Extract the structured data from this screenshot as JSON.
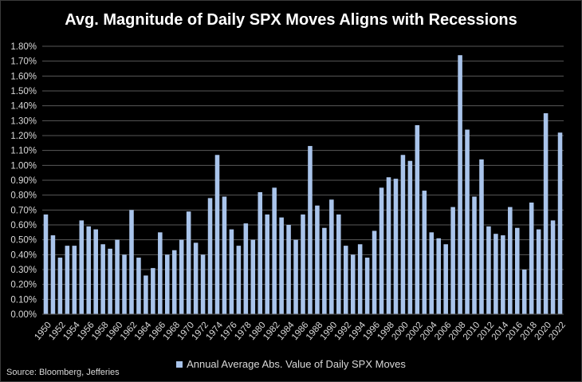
{
  "title": "Avg. Magnitude of Daily SPX Moves Aligns with Recessions",
  "source": "Source: Bloomberg, Jefferies",
  "colors": {
    "background": "#000000",
    "bar": "#a9c4eb",
    "grid": "#595959",
    "text": "#d9d9d9"
  },
  "chart_data": {
    "type": "bar",
    "title": "Avg. Magnitude of Daily SPX Moves Aligns with Recessions",
    "xlabel": "",
    "ylabel": "",
    "ylim": [
      0,
      1.8
    ],
    "ytick_step": 0.1,
    "ytick_format": "percent-2dp",
    "grid": true,
    "legend_position": "bottom",
    "x_tick_label_every": 2,
    "categories": [
      "1950",
      "1951",
      "1952",
      "1953",
      "1954",
      "1955",
      "1956",
      "1957",
      "1958",
      "1959",
      "1960",
      "1961",
      "1962",
      "1963",
      "1964",
      "1965",
      "1966",
      "1967",
      "1968",
      "1969",
      "1970",
      "1971",
      "1972",
      "1973",
      "1974",
      "1975",
      "1976",
      "1977",
      "1978",
      "1979",
      "1980",
      "1981",
      "1982",
      "1983",
      "1984",
      "1985",
      "1986",
      "1987",
      "1988",
      "1989",
      "1990",
      "1991",
      "1992",
      "1993",
      "1994",
      "1995",
      "1996",
      "1997",
      "1998",
      "1999",
      "2000",
      "2001",
      "2002",
      "2003",
      "2004",
      "2005",
      "2006",
      "2007",
      "2008",
      "2009",
      "2010",
      "2011",
      "2012",
      "2013",
      "2014",
      "2015",
      "2016",
      "2017",
      "2018",
      "2019",
      "2020",
      "2021",
      "2022"
    ],
    "series": [
      {
        "name": "Annual Average Abs. Value of Daily SPX Moves",
        "values": [
          0.67,
          0.53,
          0.38,
          0.46,
          0.46,
          0.63,
          0.59,
          0.57,
          0.47,
          0.44,
          0.5,
          0.4,
          0.7,
          0.38,
          0.26,
          0.31,
          0.55,
          0.4,
          0.43,
          0.5,
          0.69,
          0.48,
          0.4,
          0.78,
          1.07,
          0.79,
          0.57,
          0.46,
          0.61,
          0.5,
          0.82,
          0.67,
          0.85,
          0.65,
          0.6,
          0.5,
          0.67,
          1.13,
          0.73,
          0.58,
          0.77,
          0.67,
          0.46,
          0.4,
          0.47,
          0.38,
          0.56,
          0.85,
          0.92,
          0.91,
          1.07,
          1.03,
          1.27,
          0.83,
          0.55,
          0.51,
          0.47,
          0.72,
          1.74,
          1.24,
          0.79,
          1.04,
          0.59,
          0.54,
          0.53,
          0.72,
          0.58,
          0.3,
          0.75,
          0.57,
          1.35,
          0.63,
          1.22
        ]
      }
    ]
  }
}
